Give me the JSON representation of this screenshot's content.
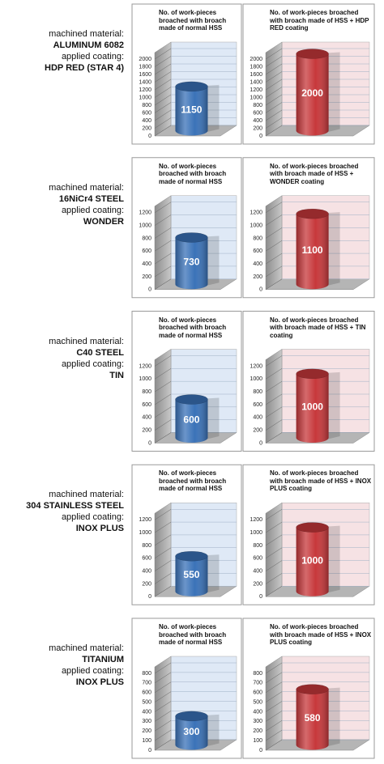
{
  "rows": [
    {
      "material_label": "machined material:",
      "material": "ALUMINUM 6082",
      "coating_label": "applied coating:",
      "coating": "HDP RED (STAR 4)"
    },
    {
      "material_label": "machined material:",
      "material": "16NiCr4 STEEL",
      "coating_label": "applied coating:",
      "coating": "WONDER"
    },
    {
      "material_label": "machined material:",
      "material": "C40 STEEL",
      "coating_label": "applied coating:",
      "coating": "TIN"
    },
    {
      "material_label": "machined material:",
      "material": "304 STAINLESS STEEL",
      "coating_label": "applied coating:",
      "coating": "INOX PLUS"
    },
    {
      "material_label": "machined material:",
      "material": "TITANIUM",
      "coating_label": "applied coating:",
      "coating": "INOX PLUS"
    }
  ],
  "chart_data": [
    {
      "type": "cylinder",
      "title": "No. of work-pieces broached with broach made of normal HSS",
      "values": [
        1150
      ],
      "color": "#3a72b8",
      "wall_color": "#dfe9f6",
      "ylim": [
        0,
        2000
      ],
      "yticks": [
        0,
        200,
        400,
        600,
        800,
        1000,
        1200,
        1400,
        1600,
        1800,
        2000
      ],
      "grid": true
    },
    {
      "type": "cylinder",
      "title": "No. of work-pieces broached with broach made of HSS + HDP RED coating",
      "values": [
        2000
      ],
      "color": "#c7383b",
      "wall_color": "#f6e2e4",
      "ylim": [
        0,
        2000
      ],
      "yticks": [
        0,
        200,
        400,
        600,
        800,
        1000,
        1200,
        1400,
        1600,
        1800,
        2000
      ],
      "grid": true
    },
    {
      "type": "cylinder",
      "title": "No. of work-pieces broached with broach made of normal HSS",
      "values": [
        730
      ],
      "color": "#3a72b8",
      "wall_color": "#dfe9f6",
      "ylim": [
        0,
        1200
      ],
      "yticks": [
        0,
        200,
        400,
        600,
        800,
        1000,
        1200
      ],
      "grid": true
    },
    {
      "type": "cylinder",
      "title": "No. of work-pieces broached with broach made of HSS + WONDER coating",
      "values": [
        1100
      ],
      "color": "#c7383b",
      "wall_color": "#f6e2e4",
      "ylim": [
        0,
        1200
      ],
      "yticks": [
        0,
        200,
        400,
        600,
        800,
        1000,
        1200
      ],
      "grid": true
    },
    {
      "type": "cylinder",
      "title": "No. of work-pieces broached with broach made of normal HSS",
      "values": [
        600
      ],
      "color": "#3a72b8",
      "wall_color": "#dfe9f6",
      "ylim": [
        0,
        1200
      ],
      "yticks": [
        0,
        200,
        400,
        600,
        800,
        1000,
        1200
      ],
      "grid": true
    },
    {
      "type": "cylinder",
      "title": "No. of work-pieces broached with broach made of HSS + TIN coating",
      "values": [
        1000
      ],
      "color": "#c7383b",
      "wall_color": "#f6e2e4",
      "ylim": [
        0,
        1200
      ],
      "yticks": [
        0,
        200,
        400,
        600,
        800,
        1000,
        1200
      ],
      "grid": true
    },
    {
      "type": "cylinder",
      "title": "No. of work-pieces broached with broach made of normal HSS",
      "values": [
        550
      ],
      "color": "#3a72b8",
      "wall_color": "#dfe9f6",
      "ylim": [
        0,
        1200
      ],
      "yticks": [
        0,
        200,
        400,
        600,
        800,
        1000,
        1200
      ],
      "grid": true
    },
    {
      "type": "cylinder",
      "title": "No. of work-pieces broached with broach made of HSS + INOX PLUS coating",
      "values": [
        1000
      ],
      "color": "#c7383b",
      "wall_color": "#f6e2e4",
      "ylim": [
        0,
        1200
      ],
      "yticks": [
        0,
        200,
        400,
        600,
        800,
        1000,
        1200
      ],
      "grid": true
    },
    {
      "type": "cylinder",
      "title": "No. of work-pieces broached with broach made of normal HSS",
      "values": [
        300
      ],
      "color": "#3a72b8",
      "wall_color": "#dfe9f6",
      "ylim": [
        0,
        800
      ],
      "yticks": [
        0,
        100,
        200,
        300,
        400,
        500,
        600,
        700,
        800
      ],
      "grid": true
    },
    {
      "type": "cylinder",
      "title": "No. of work-pieces broached with broach made of HSS + INOX PLUS coating",
      "values": [
        580
      ],
      "color": "#c7383b",
      "wall_color": "#f6e2e4",
      "ylim": [
        0,
        800
      ],
      "yticks": [
        0,
        100,
        200,
        300,
        400,
        500,
        600,
        700,
        800
      ],
      "grid": true
    }
  ]
}
